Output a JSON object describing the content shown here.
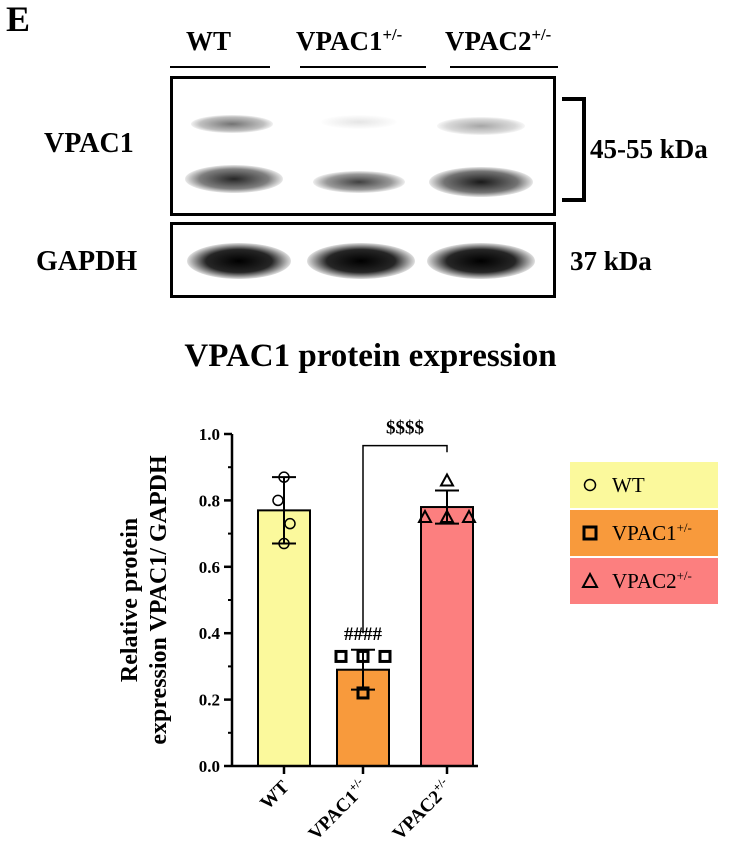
{
  "panel_letter": "E",
  "blot": {
    "lanes": [
      {
        "base": "WT",
        "sup": ""
      },
      {
        "base": "VPAC1",
        "sup": "+/-"
      },
      {
        "base": "VPAC2",
        "sup": "+/-"
      }
    ],
    "rows": [
      {
        "label": "VPAC1",
        "kda": "45-55 kDa"
      },
      {
        "label": "GAPDH",
        "kda": "37 kDa"
      }
    ]
  },
  "chart_data": {
    "type": "bar",
    "title": "VPAC1 protein expression",
    "ylabel_line1": "Relative protein",
    "ylabel_line2": "expression VPAC1/ GAPDH",
    "ylim": [
      0,
      1.0
    ],
    "yticks": [
      "0.0",
      "0.2",
      "0.4",
      "0.6",
      "0.8",
      "1.0"
    ],
    "categories": [
      {
        "base": "WT",
        "sup": ""
      },
      {
        "base": "VPAC1",
        "sup": "+/-"
      },
      {
        "base": "VPAC2",
        "sup": "+/-"
      }
    ],
    "values": [
      0.77,
      0.29,
      0.78
    ],
    "errors": [
      0.1,
      0.06,
      0.05
    ],
    "points": [
      [
        0.87,
        0.8,
        0.73,
        0.67
      ],
      [
        0.33,
        0.33,
        0.33,
        0.22
      ],
      [
        0.86,
        0.75,
        0.75,
        0.75
      ]
    ],
    "markers": [
      "circle",
      "square",
      "triangle"
    ],
    "colors": [
      "#fbf99c",
      "#f89a3c",
      "#fc7f7f"
    ],
    "annotations": [
      {
        "text": "####",
        "category": 1
      },
      {
        "text": "$$$$",
        "from": 1,
        "to": 2
      }
    ],
    "legend": {
      "position": "right",
      "entries": [
        {
          "base": "WT",
          "sup": ""
        },
        {
          "base": "VPAC1",
          "sup": "+/-"
        },
        {
          "base": "VPAC2",
          "sup": "+/-"
        }
      ]
    }
  }
}
